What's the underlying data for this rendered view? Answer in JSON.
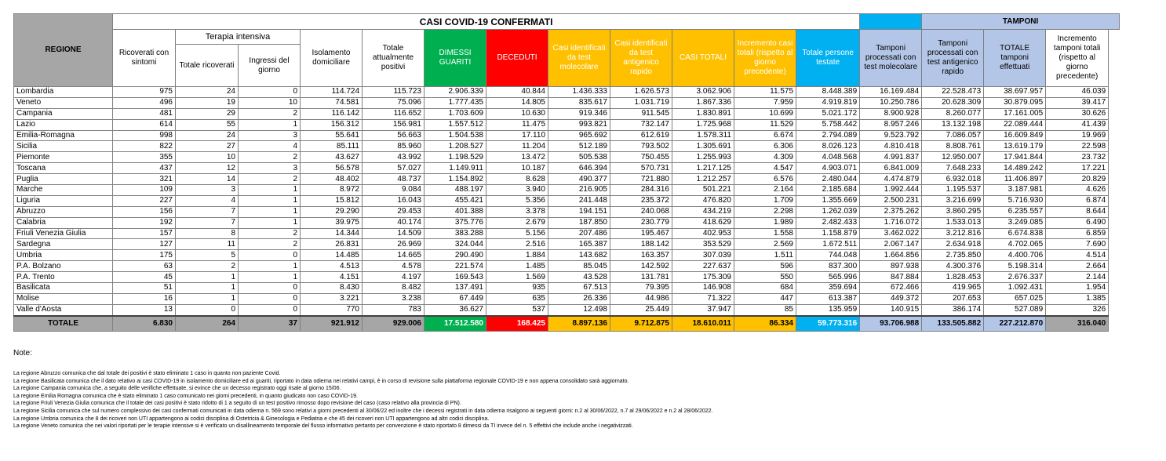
{
  "header": {
    "regione": "REGIONE",
    "casi_title": "CASI COVID-19 CONFERMATI",
    "tamponi_title": "TAMPONI",
    "terapia_intensiva": "Terapia intensiva",
    "columns": [
      "Ricoverati con sintomi",
      "Totale ricoverati",
      "Ingressi del giorno",
      "Isolamento domiciliare",
      "Totale attualmente positivi",
      "DIMESSI GUARITI",
      "DECEDUTI",
      "Casi identificati da test molecolare",
      "Casi identificati da test antigenico rapido",
      "CASI TOTALI",
      "Incremento casi totali (rispetto al giorno precedente)",
      "Totale persone testate",
      "Tamponi processati con test molecolare",
      "Tamponi processati con test antigenico rapido",
      "TOTALE tamponi effettuati",
      "Incremento tamponi totali (rispetto al giorno precedente)"
    ]
  },
  "rows": [
    [
      "Lombardia",
      "975",
      "24",
      "0",
      "114.724",
      "115.723",
      "2.906.339",
      "40.844",
      "1.436.333",
      "1.626.573",
      "3.062.906",
      "11.575",
      "8.448.389",
      "16.169.484",
      "22.528.473",
      "38.697.957",
      "46.039"
    ],
    [
      "Veneto",
      "496",
      "19",
      "10",
      "74.581",
      "75.096",
      "1.777.435",
      "14.805",
      "835.617",
      "1.031.719",
      "1.867.336",
      "7.959",
      "4.919.819",
      "10.250.786",
      "20.628.309",
      "30.879.095",
      "39.417"
    ],
    [
      "Campania",
      "481",
      "29",
      "2",
      "116.142",
      "116.652",
      "1.703.609",
      "10.630",
      "919.346",
      "911.545",
      "1.830.891",
      "10.699",
      "5.021.172",
      "8.900.928",
      "8.260.077",
      "17.161.005",
      "30.626"
    ],
    [
      "Lazio",
      "614",
      "55",
      "1",
      "156.312",
      "156.981",
      "1.557.512",
      "11.475",
      "993.821",
      "732.147",
      "1.725.968",
      "11.529",
      "5.758.442",
      "8.957.246",
      "13.132.198",
      "22.089.444",
      "41.439"
    ],
    [
      "Emilia-Romagna",
      "998",
      "24",
      "3",
      "55.641",
      "56.663",
      "1.504.538",
      "17.110",
      "965.692",
      "612.619",
      "1.578.311",
      "6.674",
      "2.794.089",
      "9.523.792",
      "7.086.057",
      "16.609.849",
      "19.969"
    ],
    [
      "Sicilia",
      "822",
      "27",
      "4",
      "85.111",
      "85.960",
      "1.208.527",
      "11.204",
      "512.189",
      "793.502",
      "1.305.691",
      "6.306",
      "8.026.123",
      "4.810.418",
      "8.808.761",
      "13.619.179",
      "22.598"
    ],
    [
      "Piemonte",
      "355",
      "10",
      "2",
      "43.627",
      "43.992",
      "1.198.529",
      "13.472",
      "505.538",
      "750.455",
      "1.255.993",
      "4.309",
      "4.048.568",
      "4.991.837",
      "12.950.007",
      "17.941.844",
      "23.732"
    ],
    [
      "Toscana",
      "437",
      "12",
      "3",
      "56.578",
      "57.027",
      "1.149.911",
      "10.187",
      "646.394",
      "570.731",
      "1.217.125",
      "4.547",
      "4.903.071",
      "6.841.009",
      "7.648.233",
      "14.489.242",
      "17.221"
    ],
    [
      "Puglia",
      "321",
      "14",
      "2",
      "48.402",
      "48.737",
      "1.154.892",
      "8.628",
      "490.377",
      "721.880",
      "1.212.257",
      "6.576",
      "2.480.044",
      "4.474.879",
      "6.932.018",
      "11.406.897",
      "20.829"
    ],
    [
      "Marche",
      "109",
      "3",
      "1",
      "8.972",
      "9.084",
      "488.197",
      "3.940",
      "216.905",
      "284.316",
      "501.221",
      "2.164",
      "2.185.684",
      "1.992.444",
      "1.195.537",
      "3.187.981",
      "4.626"
    ],
    [
      "Liguria",
      "227",
      "4",
      "1",
      "15.812",
      "16.043",
      "455.421",
      "5.356",
      "241.448",
      "235.372",
      "476.820",
      "1.709",
      "1.355.669",
      "2.500.231",
      "3.216.699",
      "5.716.930",
      "6.874"
    ],
    [
      "Abruzzo",
      "156",
      "7",
      "1",
      "29.290",
      "29.453",
      "401.388",
      "3.378",
      "194.151",
      "240.068",
      "434.219",
      "2.298",
      "1.262.039",
      "2.375.262",
      "3.860.295",
      "6.235.557",
      "8.644"
    ],
    [
      "Calabria",
      "192",
      "7",
      "1",
      "39.975",
      "40.174",
      "375.776",
      "2.679",
      "187.850",
      "230.779",
      "418.629",
      "1.989",
      "2.482.433",
      "1.716.072",
      "1.533.013",
      "3.249.085",
      "6.490"
    ],
    [
      "Friuli Venezia Giulia",
      "157",
      "8",
      "2",
      "14.344",
      "14.509",
      "383.288",
      "5.156",
      "207.486",
      "195.467",
      "402.953",
      "1.558",
      "1.158.879",
      "3.462.022",
      "3.212.816",
      "6.674.838",
      "6.859"
    ],
    [
      "Sardegna",
      "127",
      "11",
      "2",
      "26.831",
      "26.969",
      "324.044",
      "2.516",
      "165.387",
      "188.142",
      "353.529",
      "2.569",
      "1.672.511",
      "2.067.147",
      "2.634.918",
      "4.702.065",
      "7.690"
    ],
    [
      "Umbria",
      "175",
      "5",
      "0",
      "14.485",
      "14.665",
      "290.490",
      "1.884",
      "143.682",
      "163.357",
      "307.039",
      "1.511",
      "744.048",
      "1.664.856",
      "2.735.850",
      "4.400.706",
      "4.514"
    ],
    [
      "P.A. Bolzano",
      "63",
      "2",
      "1",
      "4.513",
      "4.578",
      "221.574",
      "1.485",
      "85.045",
      "142.592",
      "227.637",
      "596",
      "837.300",
      "897.938",
      "4.300.376",
      "5.198.314",
      "2.664"
    ],
    [
      "P.A. Trento",
      "45",
      "1",
      "1",
      "4.151",
      "4.197",
      "169.543",
      "1.569",
      "43.528",
      "131.781",
      "175.309",
      "550",
      "565.996",
      "847.884",
      "1.828.453",
      "2.676.337",
      "2.144"
    ],
    [
      "Basilicata",
      "51",
      "1",
      "0",
      "8.430",
      "8.482",
      "137.491",
      "935",
      "67.513",
      "79.395",
      "146.908",
      "684",
      "359.694",
      "672.466",
      "419.965",
      "1.092.431",
      "1.954"
    ],
    [
      "Molise",
      "16",
      "1",
      "0",
      "3.221",
      "3.238",
      "67.449",
      "635",
      "26.336",
      "44.986",
      "71.322",
      "447",
      "613.387",
      "449.372",
      "207.653",
      "657.025",
      "1.385"
    ],
    [
      "Valle d'Aosta",
      "13",
      "0",
      "0",
      "770",
      "783",
      "36.627",
      "537",
      "12.498",
      "25.449",
      "37.947",
      "85",
      "135.959",
      "140.915",
      "386.174",
      "527.089",
      "326"
    ]
  ],
  "total": [
    "TOTALE",
    "6.830",
    "264",
    "37",
    "921.912",
    "929.006",
    "17.512.580",
    "168.425",
    "8.897.136",
    "9.712.875",
    "18.610.011",
    "86.334",
    "59.773.316",
    "93.706.988",
    "133.505.882",
    "227.212.870",
    "316.040"
  ],
  "notes": {
    "title": "Note:",
    "lines": [
      "La regione Abruzzo comunica che dal totale dei positivi è stato eliminato 1 caso in quanto non paziente Covid.",
      "La regione Basilicata comunica che il dato relativo ai casi COVID-19 in isolamento domiciliare ed ai guariti, riportato in data odierna nei relativi campi, è in corso di revisione sulla piattaforma regionale COVID-19 e non appena consolidato sarà aggiornato.",
      "La regione Campania comunica che, a seguito delle verifiche effettuate, si evince che un decesso registrato oggi risale al giorno 15/06.",
      "La regione Emilia Romagna comunica che è stato eliminato 1 caso comunicato nei giorni precedenti, in quanto giudicato non caso COVID-19.",
      "La regione Friuli Venezia Giulia comunica che il totale dei casi positivi è stato ridotto di 1 a seguito di un test positivo rimosso dopo revisione del caso (caso relativo alla provincia di PN).",
      "La regione Sicilia comunica che sul numero complessivo dei casi confermati comunicati in data odierna n. 569 sono relativi a giorni precedenti al 30/06/22 ed inoltre che i decessi registrati in data odierna risalgono ai seguenti giorni: n.2 al 30/06/2022, n.7 al 29/06/2022 e n.2 al 28/06/2022.",
      "La regione Umbria comunica che 8 dei ricoveri non UTI appartengono ai codici disciplina di Ostetricia & Ginecologia e Pediatria e che 45 dei ricoveri non UTI appartengono ad altri codici disciplina.",
      "La regione Veneto comunica che nei valori riportati per le terapie intensive si è verificato un disallineamento temporale del flusso informativo pertanto per convenzione è stato riportato 8 dimessi da TI  invece del n. 5 effettivi che include anche i negativizzati."
    ]
  },
  "colors": {
    "gray": "#a6a6a6",
    "light_blue": "#b4c6e7",
    "yellow": "#ffc000",
    "green": "#00b050",
    "red": "#ff0000",
    "cyan": "#00b0f0"
  }
}
